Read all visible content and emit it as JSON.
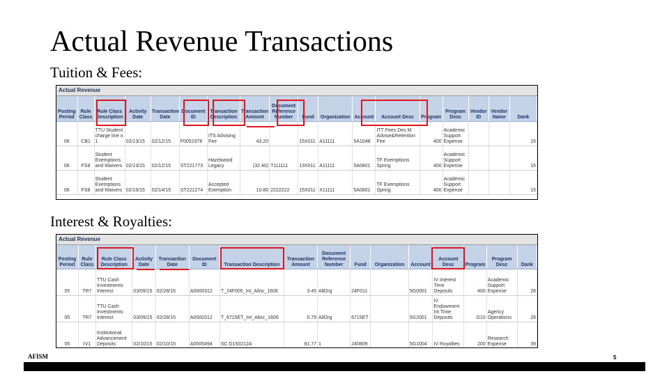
{
  "slide": {
    "title": "Actual Revenue Transactions",
    "footer_left": "AFISM",
    "page_number": "5"
  },
  "tuition": {
    "label": "Tuition & Fees:",
    "caption": "Actual Revenue",
    "columns": [
      "Posting Period",
      "Rule Class",
      "Rule Class Description",
      "Activity Date",
      "Transaction Date",
      "Document ID",
      "Transaction Description",
      "Transaction Amount",
      "Document Reference Number",
      "Fund",
      "Organization",
      "Account",
      "Account Desc",
      "Program",
      "Program Desc",
      "Vendor ID",
      "Vendor Name",
      "Dank"
    ],
    "rows": [
      [
        "06",
        "CB1",
        "TTU Student charge line o 1",
        "02/13/15",
        "02/12/15",
        "F0051976",
        "ITS Advising Fee",
        "43.20",
        "",
        "15X011",
        "A11111",
        "5A1048",
        "ITT Fees Des M Advise&Retention Fee",
        "400",
        "Academic Support Expense",
        "",
        "",
        "15"
      ],
      [
        "06",
        "FS8",
        "Student Exemptions and Waivers",
        "02/13/15",
        "02/12/15",
        "ST221773",
        "Hazelwood Legacy",
        "(32.40)",
        "T111111",
        "13X011",
        "A11111",
        "5A0801",
        "TF Exemptions Spring",
        "400",
        "Academic Support Expense",
        "",
        "",
        "15"
      ],
      [
        "06",
        "FS8",
        "Student Exemptions and Waivers",
        "02/16/15",
        "02/14/15",
        "ST221274",
        "Accepted Exemption",
        "10.80",
        "2222222",
        "15X011",
        "X11111",
        "5A0801",
        "TF Exemptions Spring",
        "400",
        "Academic Support Expense",
        "",
        "",
        "15"
      ]
    ]
  },
  "interest": {
    "label": "Interest & Royalties:",
    "caption": "Actual Revenue",
    "columns": [
      "Posting Period",
      "Rule Class",
      "Rule Class Description",
      "Activity Date",
      "Transaction Date",
      "Document ID",
      "Transaction Description",
      "Transaction Amount",
      "Document Reference Number",
      "Fund",
      "Organization",
      "Account",
      "Account Desc",
      "Program",
      "Program Desc",
      "Dank"
    ],
    "rows": [
      [
        "05",
        "TR7",
        "TTU Cash Investments Interest",
        "03/09/15",
        "02/28/15",
        "A0000312",
        "T_24F005_Int_Alloc_1606",
        "3.45",
        "AllOrg",
        "24F011",
        "",
        "5G0001",
        "IV Interest Time Deposits",
        "400",
        "Academic Support Expense",
        "26"
      ],
      [
        "05",
        "TR7",
        "TTU Cash Investments Interest",
        "03/09/15",
        "02/28/15",
        "A0000312",
        "T_6715ET_Int_Alloc_1606",
        "0.79",
        "AllOrg",
        "6715ET",
        "",
        "5G2001",
        "IV Endowment Int Time Deposits",
        "G10",
        "Agency Operations",
        "26"
      ],
      [
        "05",
        "IV1",
        "Institutional Advancement Deposits",
        "02/10/15",
        "02/10/15",
        "A0005494",
        "SC D150212A",
        "81.77",
        "1",
        "240809",
        "",
        "5G1004",
        "IV Royalties",
        "200",
        "Research Expense",
        "39"
      ]
    ]
  }
}
